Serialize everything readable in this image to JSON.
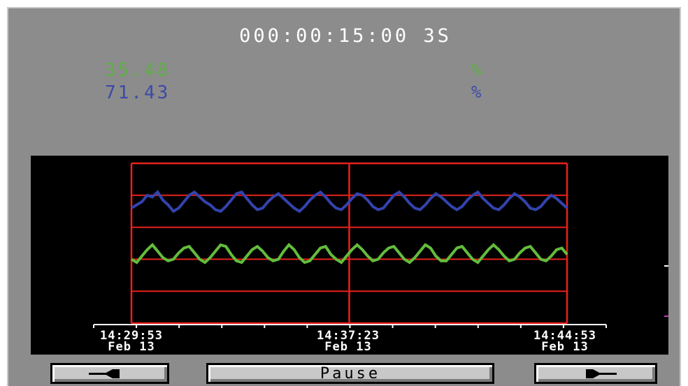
{
  "header": {
    "elapsed": "000:00:15:00  3S"
  },
  "readouts": [
    {
      "value": "35.48",
      "unit": "%",
      "color": "#5fae48"
    },
    {
      "value": "71.43",
      "unit": "%",
      "color": "#3c4aa8"
    }
  ],
  "chart_data": {
    "type": "line",
    "series": [
      {
        "color": "#3343ad",
        "values": [
          72,
          74,
          76,
          80,
          79,
          82,
          77,
          74,
          70,
          72,
          76,
          80,
          82,
          79,
          76,
          74,
          71,
          70,
          73,
          77,
          81,
          82,
          78,
          74,
          71,
          72,
          76,
          79,
          81,
          78,
          75,
          72,
          70,
          73,
          77,
          80,
          82,
          79,
          75,
          72,
          71,
          74,
          78,
          81,
          80,
          77,
          73,
          71,
          72,
          76,
          80,
          82,
          79,
          75,
          72,
          71,
          74,
          78,
          81,
          79,
          76,
          73,
          71,
          73,
          77,
          80,
          82,
          78,
          75,
          72,
          71,
          74,
          78,
          81,
          79,
          76,
          72,
          71,
          73,
          77,
          80,
          78,
          75,
          72
        ]
      },
      {
        "color": "#63bd3c",
        "values": [
          40,
          38,
          42,
          46,
          49,
          45,
          41,
          39,
          40,
          44,
          47,
          48,
          44,
          40,
          38,
          41,
          45,
          49,
          48,
          43,
          39,
          38,
          42,
          46,
          48,
          45,
          41,
          39,
          40,
          45,
          49,
          46,
          41,
          38,
          39,
          43,
          47,
          48,
          43,
          40,
          38,
          42,
          46,
          49,
          46,
          42,
          39,
          40,
          44,
          47,
          48,
          44,
          40,
          38,
          41,
          45,
          49,
          47,
          42,
          39,
          39,
          43,
          47,
          48,
          44,
          40,
          38,
          42,
          46,
          49,
          46,
          42,
          39,
          40,
          44,
          47,
          48,
          44,
          40,
          39,
          42,
          46,
          47,
          43
        ]
      }
    ],
    "ylim": [
      0,
      100
    ],
    "x_ticks": [
      {
        "time": "14:29:53",
        "date": "Feb 13"
      },
      {
        "time": "14:37:23",
        "date": "Feb 13"
      },
      {
        "time": "14:44:53",
        "date": "Feb 13"
      }
    ],
    "grid_color": "#e8211c"
  },
  "buttons": {
    "back_icon": "arrow-left-icon",
    "pause_label": "Pause",
    "forward_icon": "arrow-right-icon"
  }
}
